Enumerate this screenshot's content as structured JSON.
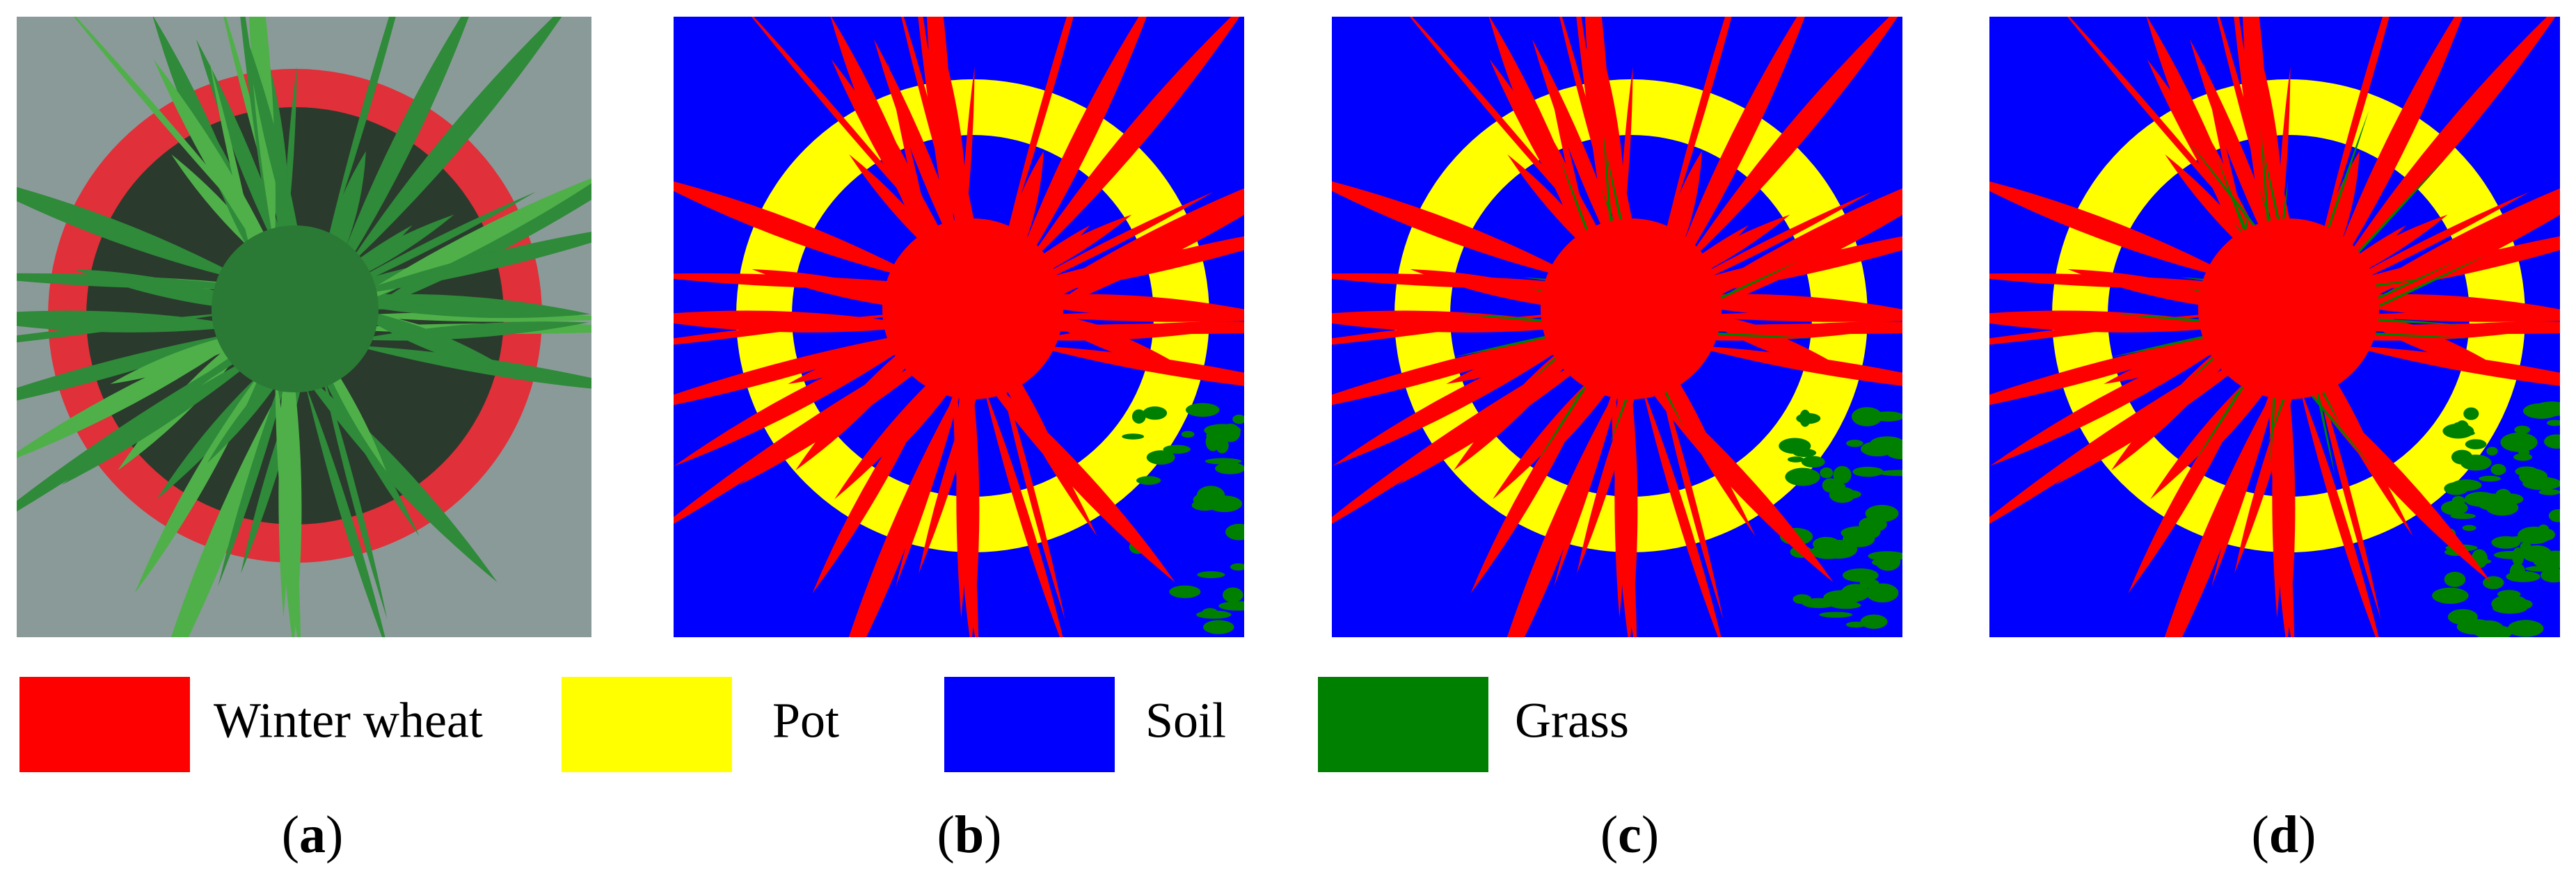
{
  "legend": [
    {
      "label": "Winter wheat",
      "color": "#ff0000"
    },
    {
      "label": "Pot",
      "color": "#ffff00"
    },
    {
      "label": "Soil",
      "color": "#0000ff"
    },
    {
      "label": "Grass",
      "color": "#008000"
    }
  ],
  "panels": [
    {
      "label": "(a)"
    },
    {
      "label": "(b)"
    },
    {
      "label": "(c)"
    },
    {
      "label": "(d)"
    }
  ]
}
